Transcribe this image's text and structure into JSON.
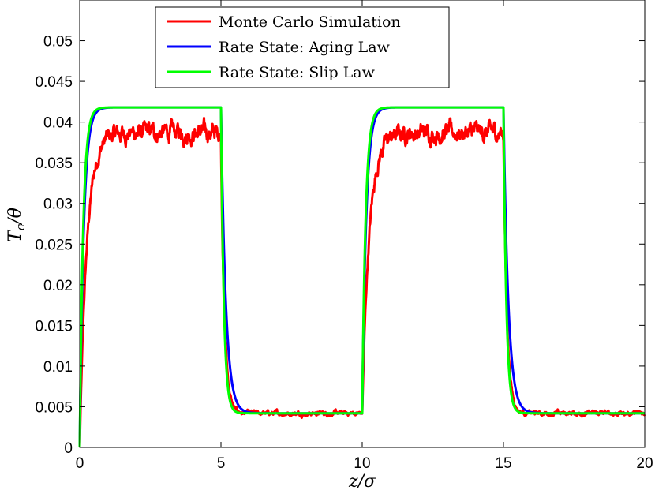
{
  "chart_data": {
    "type": "line",
    "xlabel": "z/σ",
    "ylabel": "T_c/θ",
    "xlim": [
      0,
      20
    ],
    "ylim": [
      0,
      0.055
    ],
    "xticks": [
      "0",
      "5",
      "10",
      "15",
      "20"
    ],
    "yticks": [
      "0",
      "0.005",
      "0.01",
      "0.015",
      "0.02",
      "0.025",
      "0.03",
      "0.035",
      "0.04",
      "0.045",
      "0.05"
    ],
    "legend_position": "top-center",
    "grid": false,
    "series": [
      {
        "name": "Monte Carlo Simulation",
        "color": "#ff0000",
        "model": {
          "rise_tau": 0.25,
          "fall_tau": 0.12,
          "high": 0.0387,
          "low": 0.0042,
          "noise": 0.0009
        }
      },
      {
        "name": "Rate State: Aging Law",
        "color": "#0000ff",
        "model": {
          "rise_tau": 0.14,
          "fall_tau": 0.17,
          "high": 0.0418,
          "low": 0.0042,
          "noise": 0
        }
      },
      {
        "name": "Rate State: Slip Law",
        "color": "#00ff00",
        "model": {
          "rise_tau": 0.12,
          "fall_tau": 0.1,
          "high": 0.0418,
          "low": 0.0042,
          "noise": 0
        }
      }
    ],
    "switch_points": [
      0,
      5,
      10,
      15,
      20
    ]
  }
}
